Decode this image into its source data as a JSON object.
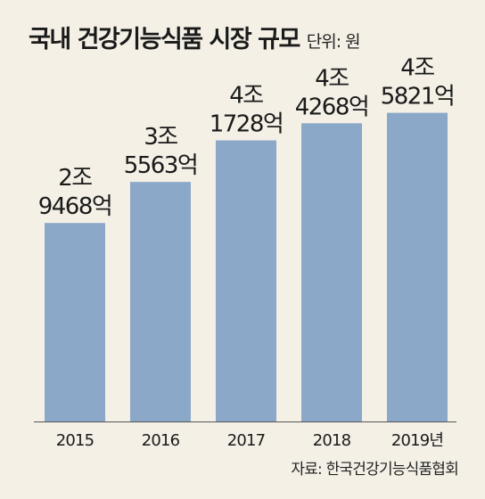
{
  "title": "국내 건강기능식품 시장 규모",
  "unit_label": "단위: 원",
  "source_label": "자료: 한국건강기능식품협회",
  "chart_data": {
    "type": "bar",
    "title": "국내 건강기능식품 시장 규모",
    "categories": [
      "2015",
      "2016",
      "2017",
      "2018",
      "2019년"
    ],
    "values": [
      29468,
      35563,
      41728,
      44268,
      45821
    ],
    "value_unit": "억원",
    "data_labels": [
      [
        "2조",
        "9468억"
      ],
      [
        "3조",
        "5563억"
      ],
      [
        "4조",
        "1728억"
      ],
      [
        "4조",
        "4268억"
      ],
      [
        "4조",
        "5821억"
      ]
    ],
    "ylim": [
      0,
      50000
    ],
    "grid": false,
    "legend": false,
    "bar_color": "#8ca8c9",
    "background": "#f4f0e6"
  }
}
